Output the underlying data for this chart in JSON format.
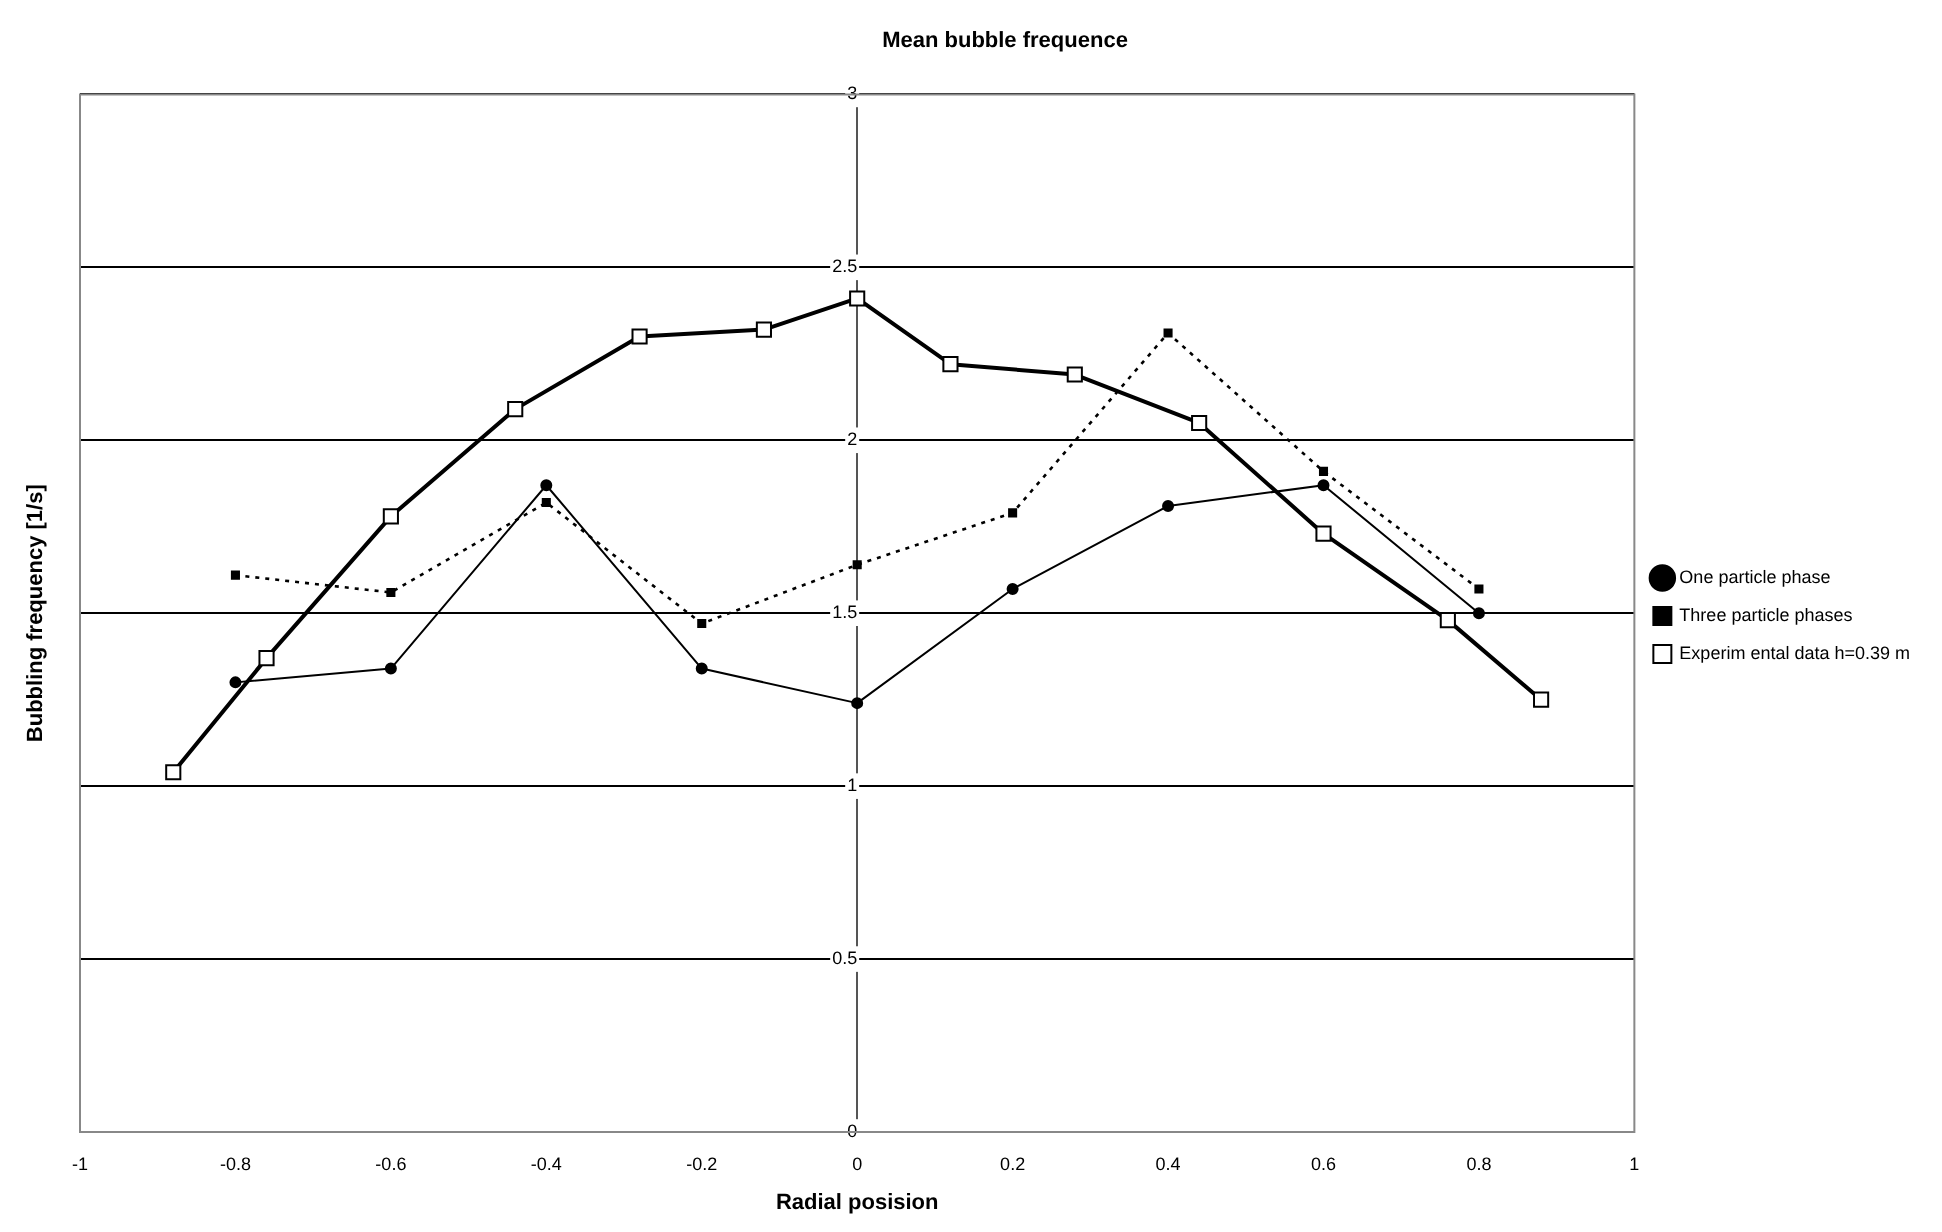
{
  "chart_data": {
    "type": "line",
    "title": "Mean bubble frequence",
    "xlabel": "Radial posision",
    "ylabel": "Bubbling frequency [1/s]",
    "xlim": [
      -1,
      1
    ],
    "xticks": [
      -1,
      -0.8,
      -0.6,
      -0.4,
      -0.2,
      0,
      0.2,
      0.4,
      0.6,
      0.8,
      1
    ],
    "ylim": [
      0,
      3
    ],
    "yticks": [
      0,
      0.5,
      1,
      1.5,
      2,
      2.5,
      3
    ],
    "grid": "y",
    "legend": "right",
    "series": [
      {
        "name": "One particle phase",
        "color": "#000000",
        "marker": "circle",
        "line_style": "solid",
        "x": [
          -0.8,
          -0.6,
          -0.4,
          -0.2,
          0,
          0.2,
          0.4,
          0.6,
          0.8
        ],
        "values": [
          1.3,
          1.34,
          1.87,
          1.34,
          1.24,
          1.57,
          1.81,
          1.87,
          1.5
        ]
      },
      {
        "name": "Three particle phases",
        "color": "#000000",
        "marker": "square",
        "line_style": "dotted",
        "x": [
          -0.8,
          -0.6,
          -0.4,
          -0.2,
          0,
          0.2,
          0.4,
          0.6,
          0.8
        ],
        "values": [
          1.61,
          1.56,
          1.82,
          1.47,
          1.64,
          1.79,
          2.31,
          1.91,
          1.57
        ]
      },
      {
        "name": "Experim ental data h=0.39 m",
        "color": "#000000",
        "marker": "square",
        "line_style": "solid",
        "x": [
          -0.88,
          -0.76,
          -0.6,
          -0.44,
          -0.28,
          -0.12,
          0,
          0.12,
          0.28,
          0.44,
          0.6,
          0.76,
          0.88
        ],
        "values": [
          1.04,
          1.37,
          1.78,
          2.09,
          2.3,
          2.32,
          2.41,
          2.22,
          2.19,
          2.05,
          1.73,
          1.48,
          1.25
        ]
      }
    ]
  }
}
